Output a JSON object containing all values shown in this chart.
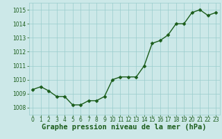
{
  "x": [
    0,
    1,
    2,
    3,
    4,
    5,
    6,
    7,
    8,
    9,
    10,
    11,
    12,
    13,
    14,
    15,
    16,
    17,
    18,
    19,
    20,
    21,
    22,
    23
  ],
  "y": [
    1009.3,
    1009.5,
    1009.2,
    1008.8,
    1008.8,
    1008.2,
    1008.2,
    1008.5,
    1008.5,
    1008.8,
    1010.0,
    1010.2,
    1010.2,
    1010.2,
    1011.0,
    1012.6,
    1012.8,
    1013.2,
    1014.0,
    1014.0,
    1014.8,
    1015.0,
    1014.6,
    1014.8
  ],
  "line_color": "#1a5c1a",
  "marker_color": "#1a5c1a",
  "bg_color": "#cce8e8",
  "grid_color": "#99cccc",
  "xlabel": "Graphe pression niveau de la mer (hPa)",
  "xlabel_color": "#1a5c1a",
  "ylim": [
    1007.5,
    1015.5
  ],
  "xlim": [
    -0.5,
    23.5
  ],
  "yticks": [
    1008,
    1009,
    1010,
    1011,
    1012,
    1013,
    1014,
    1015
  ],
  "xticks": [
    0,
    1,
    2,
    3,
    4,
    5,
    6,
    7,
    8,
    9,
    10,
    11,
    12,
    13,
    14,
    15,
    16,
    17,
    18,
    19,
    20,
    21,
    22,
    23
  ],
  "tick_color": "#1a5c1a",
  "tick_fontsize": 5.5,
  "xlabel_fontsize": 7.5,
  "line_width": 1.0,
  "marker_size": 2.5
}
